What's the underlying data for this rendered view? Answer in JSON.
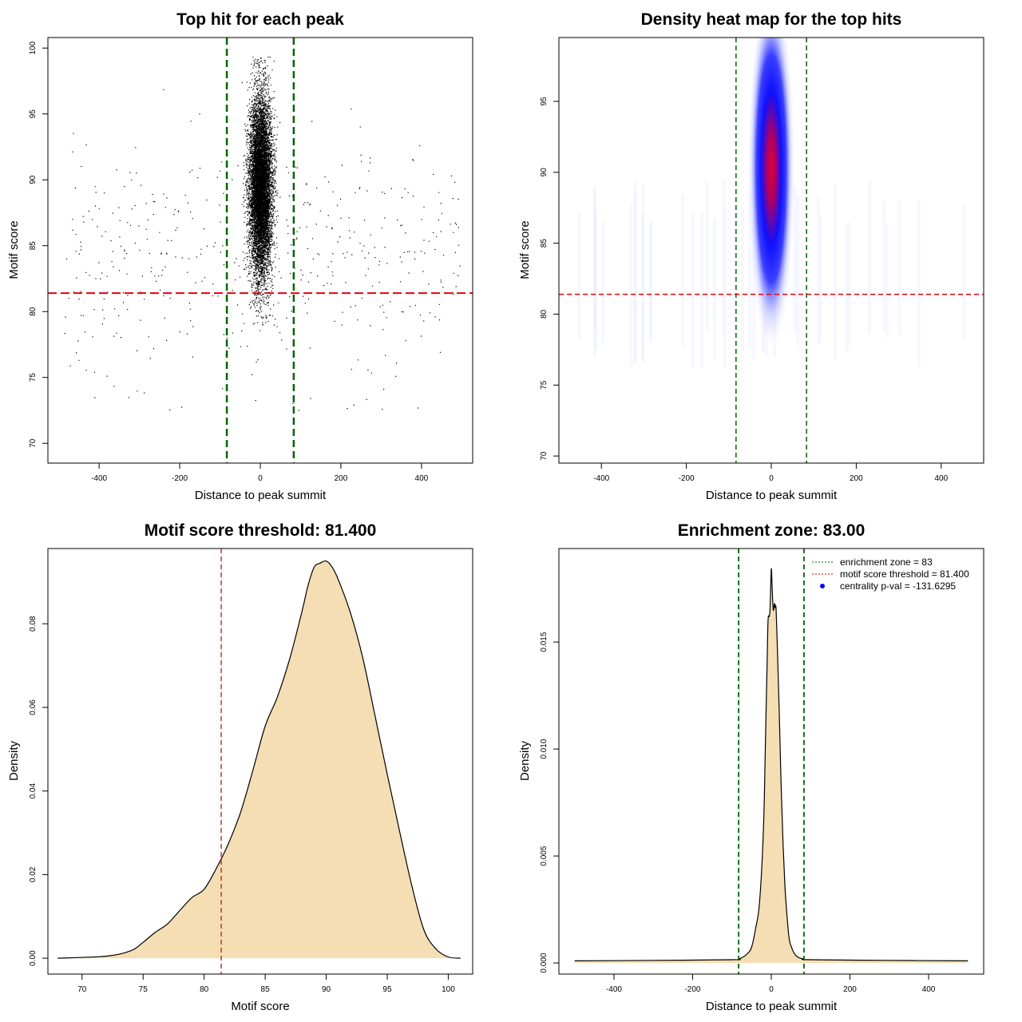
{
  "colors": {
    "green_line": "#006400",
    "red_line": "#e8000b",
    "fill": "#f5deb3",
    "points": "#000000",
    "legend_dot": "#0000ff"
  },
  "chart_data": [
    {
      "type": "scatter",
      "title": "Top hit for each peak",
      "xlabel": "Distance to peak summit",
      "ylabel": "Motif score",
      "xlim": [
        -527,
        527
      ],
      "ylim": [
        68.5,
        100.8
      ],
      "xticks": [
        -400,
        -200,
        0,
        200,
        400
      ],
      "yticks": [
        70,
        75,
        80,
        85,
        90,
        95,
        100
      ],
      "series": [
        {
          "name": "top hits",
          "n_points": 9000,
          "center_x": 0,
          "center_y": 89.5
        }
      ],
      "vlines": [
        -83,
        83
      ],
      "hline": 81.4
    },
    {
      "type": "heatmap",
      "title": "Density heat map for the top hits",
      "xlabel": "Distance to peak summit",
      "ylabel": "Motif score",
      "xlim": [
        -500,
        500
      ],
      "ylim": [
        69.5,
        99.5
      ],
      "xticks": [
        -400,
        -200,
        0,
        200,
        400
      ],
      "yticks": [
        70,
        75,
        80,
        85,
        90,
        95
      ],
      "density_peak": {
        "x": 0,
        "y": 90
      },
      "vlines": [
        -83,
        83
      ],
      "hline": 81.4
    },
    {
      "type": "area",
      "title": "Motif score threshold: 81.400",
      "xlabel": "Motif score",
      "ylabel": "Density",
      "xlim": [
        67.2,
        102
      ],
      "ylim": [
        -0.0038,
        0.098
      ],
      "xticks": [
        70,
        75,
        80,
        85,
        90,
        95,
        100
      ],
      "yticks": [
        0.0,
        0.02,
        0.04,
        0.06,
        0.08
      ],
      "ytick_labels": [
        "0.00",
        "0.02",
        "0.04",
        "0.06",
        "0.08"
      ],
      "x": [
        68,
        72,
        74,
        75,
        76,
        77,
        78,
        79,
        80,
        81,
        82,
        83,
        84,
        85,
        86,
        87,
        88,
        88.5,
        89,
        89.5,
        90,
        90.5,
        91,
        92,
        93,
        94,
        95,
        96,
        97,
        98,
        99,
        100,
        101
      ],
      "values": [
        0,
        0.0005,
        0.0018,
        0.0038,
        0.0062,
        0.0082,
        0.0114,
        0.0145,
        0.0165,
        0.0215,
        0.0275,
        0.035,
        0.045,
        0.0555,
        0.0625,
        0.0715,
        0.0828,
        0.089,
        0.0935,
        0.0945,
        0.095,
        0.0935,
        0.0905,
        0.0825,
        0.0718,
        0.058,
        0.044,
        0.0305,
        0.0175,
        0.0068,
        0.0022,
        0.0003,
        0
      ],
      "vline": 81.4
    },
    {
      "type": "area",
      "title": "Enrichment zone: 83.00",
      "xlabel": "Distance to peak summit",
      "ylabel": "Density",
      "xlim": [
        -540,
        540
      ],
      "ylim": [
        -0.00052,
        0.01937
      ],
      "xticks": [
        -400,
        -200,
        0,
        200,
        400
      ],
      "yticks": [
        0.0,
        0.005,
        0.01,
        0.015
      ],
      "ytick_labels": [
        "0.000",
        "0.005",
        "0.010",
        "0.015"
      ],
      "x": [
        -500,
        -300,
        -100,
        -80,
        -60,
        -50,
        -40,
        -30,
        -20,
        -15,
        -10,
        -8,
        -5,
        -3,
        0,
        2,
        5,
        8,
        10,
        12,
        15,
        20,
        25,
        30,
        35,
        40,
        45,
        50,
        60,
        70,
        80,
        100,
        300,
        500
      ],
      "values": [
        0.0001,
        0.00012,
        0.00015,
        0.0002,
        0.00045,
        0.00075,
        0.0016,
        0.0028,
        0.0062,
        0.0102,
        0.0146,
        0.0161,
        0.0162,
        0.0166,
        0.0184,
        0.0176,
        0.0165,
        0.0168,
        0.0166,
        0.0166,
        0.015,
        0.0118,
        0.0083,
        0.0055,
        0.0035,
        0.0022,
        0.0012,
        0.0008,
        0.0004,
        0.00025,
        0.0002,
        0.00015,
        0.00012,
        0.0001
      ],
      "vlines": [
        -83,
        83
      ],
      "legend": [
        {
          "label": "enrichment zone = 83",
          "style": "green-dotted"
        },
        {
          "label": "motif score threshold = 81.400",
          "style": "red-dotted"
        },
        {
          "label": "centrality p-val = -131.6295",
          "style": "blue-dot"
        }
      ]
    }
  ]
}
